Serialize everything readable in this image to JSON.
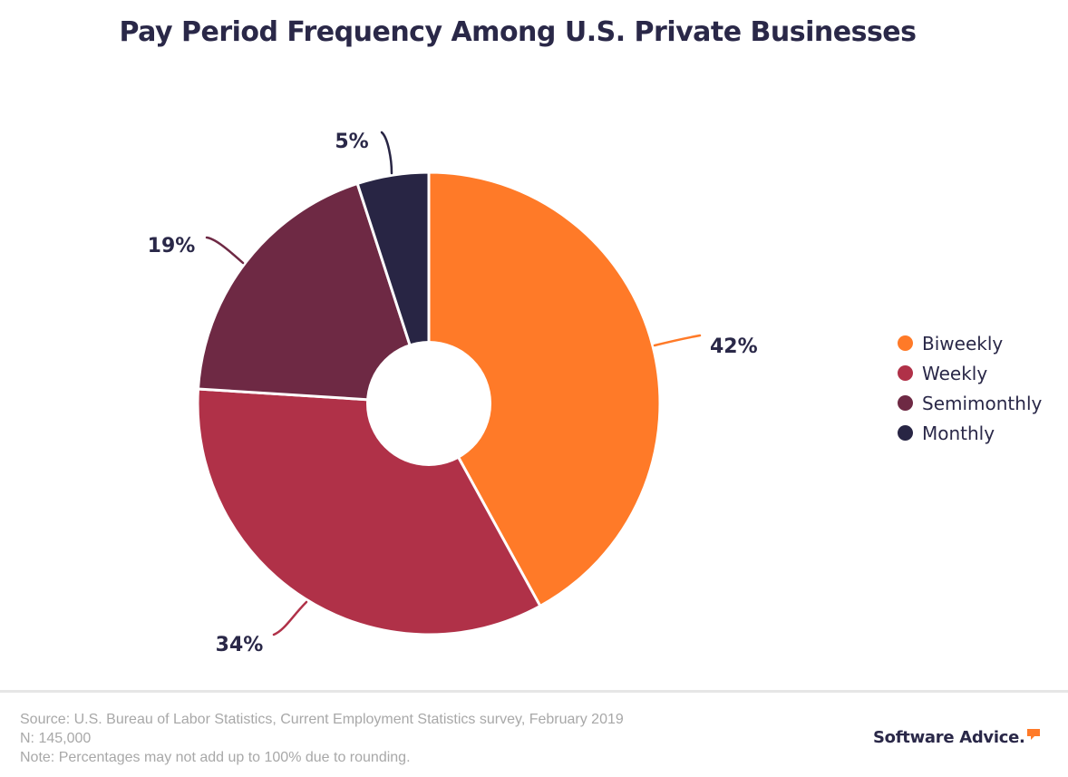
{
  "chart_data": {
    "type": "pie",
    "variant": "donut",
    "title": "Pay Period Frequency Among U.S. Private Businesses",
    "categories": [
      "Biweekly",
      "Weekly",
      "Semimonthly",
      "Monthly"
    ],
    "values": [
      42,
      34,
      19,
      5
    ],
    "labels": [
      "42%",
      "34%",
      "19%",
      "5%"
    ],
    "colors": [
      "#FF7A28",
      "#B03148",
      "#6E2944",
      "#282544"
    ],
    "start": "top",
    "direction": "clockwise",
    "legend": {
      "position": "right",
      "entries": [
        "Biweekly",
        "Weekly",
        "Semimonthly",
        "Monthly"
      ]
    }
  },
  "footer": {
    "source": "Source: U.S. Bureau of Labor Statistics, Current Employment Statistics survey, February 2019",
    "n": "N: 145,000",
    "note": "Note: Percentages may not add up to 100% due to rounding.",
    "brand": "Software Advice.",
    "brand_accent_color": "#FF7A28"
  }
}
